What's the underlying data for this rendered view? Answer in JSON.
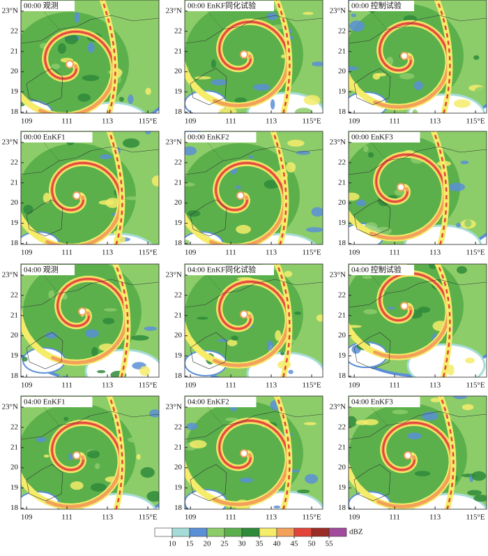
{
  "panels": [
    {
      "title": "00:00 观测"
    },
    {
      "title": "00:00 EnKF同化试验"
    },
    {
      "title": "00:00 控制试验"
    },
    {
      "title": "00:00 EnKF1"
    },
    {
      "title": "00:00 EnKF2"
    },
    {
      "title": "00:00 EnKF3"
    },
    {
      "title": "04:00 观测"
    },
    {
      "title": "04:00 EnKF同化试验"
    },
    {
      "title": "04:00 控制试验"
    },
    {
      "title": "04:00 EnKF1"
    },
    {
      "title": "04:00 EnKF2"
    },
    {
      "title": "04:00 EnKF3"
    }
  ],
  "xlim": [
    108.72,
    115.55
  ],
  "ylim": [
    17.95,
    23.55
  ],
  "xticks": [
    109,
    111,
    113,
    {
      "value": 115,
      "label": "115°E"
    }
  ],
  "yticks": [
    18,
    19,
    20,
    21,
    22,
    {
      "value": 23,
      "label": "23°N"
    }
  ],
  "colorbar": {
    "levels": [
      10,
      15,
      20,
      25,
      30,
      35,
      40,
      45,
      50,
      55
    ],
    "colors": [
      "#ffffff",
      "#a6dcd8",
      "#5b8fd6",
      "#8ccd6a",
      "#5bb04c",
      "#2f8a3a",
      "#f5ec6a",
      "#f3a05a",
      "#e2443a",
      "#9b2b25",
      "#a24a9c"
    ],
    "unit": "dBZ"
  }
}
